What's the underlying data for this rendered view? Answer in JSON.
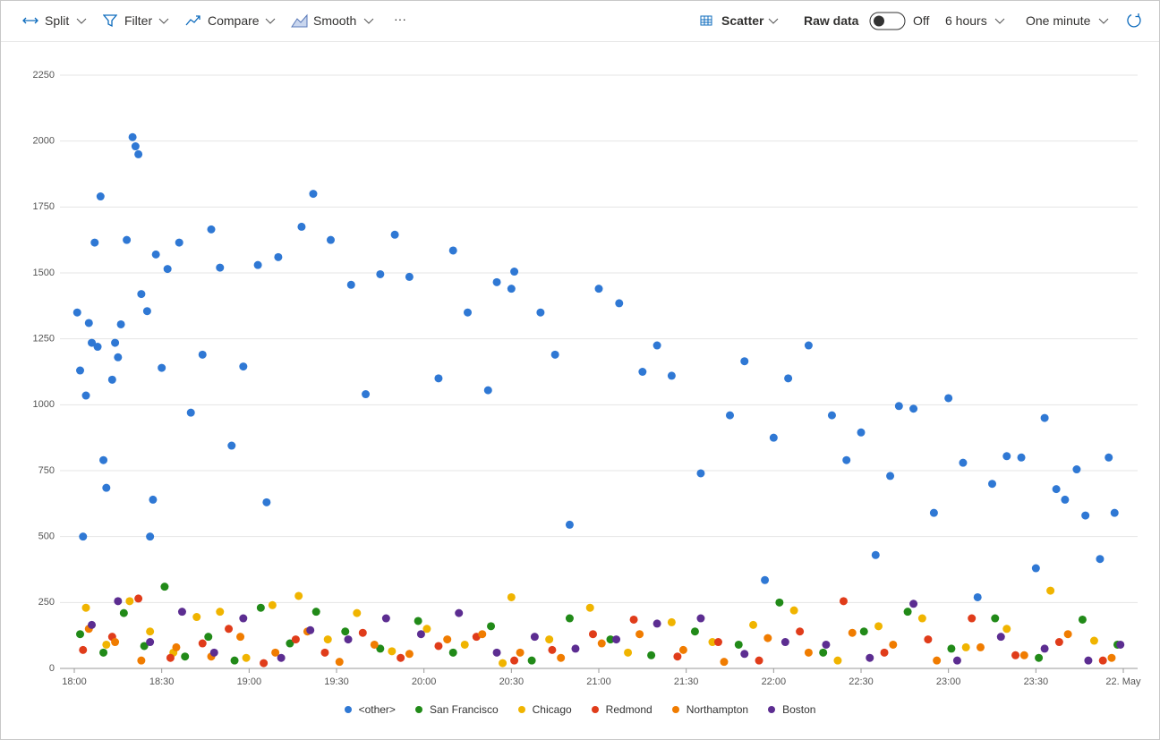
{
  "toolbar": {
    "split": "Split",
    "filter": "Filter",
    "compare": "Compare",
    "smooth": "Smooth",
    "more": "···",
    "chart_type": "Scatter",
    "raw_data": "Raw data",
    "toggle": "Off",
    "range": "6 hours",
    "interval": "One minute"
  },
  "chart_data": {
    "type": "scatter",
    "grid": true,
    "xlim": [
      "18:00",
      "24:00"
    ],
    "xticks": [
      "18:00",
      "18:30",
      "19:00",
      "19:30",
      "20:00",
      "20:30",
      "21:00",
      "21:30",
      "22:00",
      "22:30",
      "23:00",
      "23:30",
      {
        "value": "24:00",
        "label": "22. May"
      }
    ],
    "ylim": [
      0,
      2250
    ],
    "yticks": [
      0,
      250,
      500,
      750,
      1000,
      1250,
      1500,
      1750,
      2000,
      2250
    ],
    "series": [
      {
        "name": "<other>",
        "color": "#2f78d4",
        "x": [
          "18:01",
          "18:02",
          "18:03",
          "18:04",
          "18:05",
          "18:06",
          "18:07",
          "18:08",
          "18:09",
          "18:10",
          "18:11",
          "18:13",
          "18:14",
          "18:15",
          "18:16",
          "18:18",
          "18:20",
          "18:21",
          "18:22",
          "18:23",
          "18:25",
          "18:26",
          "18:27",
          "18:28",
          "18:30",
          "18:32",
          "18:36",
          "18:40",
          "18:44",
          "18:47",
          "18:50",
          "18:54",
          "18:58",
          "19:03",
          "19:06",
          "19:10",
          "19:18",
          "19:22",
          "19:28",
          "19:35",
          "19:40",
          "19:45",
          "19:50",
          "19:55",
          "20:05",
          "20:10",
          "20:15",
          "20:22",
          "20:25",
          "20:30",
          "20:31",
          "20:40",
          "20:45",
          "20:50",
          "21:00",
          "21:07",
          "21:15",
          "21:20",
          "21:25",
          "21:35",
          "21:45",
          "21:50",
          "21:57",
          "22:00",
          "22:05",
          "22:12",
          "22:20",
          "22:25",
          "22:30",
          "22:35",
          "22:40",
          "22:43",
          "22:48",
          "22:55",
          "23:00",
          "23:05",
          "23:10",
          "23:15",
          "23:20",
          "23:25",
          "23:30",
          "23:33",
          "23:37",
          "23:40",
          "23:44",
          "23:47",
          "23:52",
          "23:55",
          "23:57"
        ],
        "values": [
          1350,
          1130,
          500,
          1035,
          1310,
          1235,
          1615,
          1220,
          1790,
          790,
          685,
          1095,
          1235,
          1180,
          1305,
          1625,
          2015,
          1980,
          1950,
          1420,
          1355,
          500,
          640,
          1570,
          1140,
          1515,
          1615,
          970,
          1190,
          1665,
          1520,
          845,
          1145,
          1530,
          630,
          1560,
          1675,
          1800,
          1625,
          1455,
          1040,
          1495,
          1645,
          1485,
          1100,
          1585,
          1350,
          1055,
          1465,
          1440,
          1505,
          1350,
          1190,
          545,
          1440,
          1385,
          1125,
          1225,
          1110,
          740,
          960,
          1165,
          335,
          875,
          1100,
          1225,
          960,
          790,
          895,
          430,
          730,
          995,
          985,
          590,
          1025,
          780,
          270,
          700,
          805,
          800,
          380,
          950,
          680,
          640,
          755,
          580,
          415,
          800,
          590
        ]
      },
      {
        "name": "San Francisco",
        "color": "#218a18",
        "x": [
          "18:02",
          "18:10",
          "18:17",
          "18:24",
          "18:31",
          "18:38",
          "18:46",
          "18:55",
          "19:04",
          "19:14",
          "19:23",
          "19:33",
          "19:45",
          "19:58",
          "20:10",
          "20:23",
          "20:37",
          "20:50",
          "21:04",
          "21:18",
          "21:33",
          "21:48",
          "22:02",
          "22:17",
          "22:31",
          "22:46",
          "23:01",
          "23:16",
          "23:31",
          "23:46",
          "23:58"
        ],
        "values": [
          130,
          60,
          210,
          85,
          310,
          45,
          120,
          30,
          230,
          95,
          215,
          140,
          75,
          180,
          60,
          160,
          30,
          190,
          110,
          50,
          140,
          90,
          250,
          60,
          140,
          215,
          75,
          190,
          40,
          185,
          90
        ]
      },
      {
        "name": "Chicago",
        "color": "#f0b400",
        "x": [
          "18:04",
          "18:11",
          "18:19",
          "18:26",
          "18:34",
          "18:42",
          "18:50",
          "18:59",
          "19:08",
          "19:17",
          "19:27",
          "19:37",
          "19:49",
          "20:01",
          "20:14",
          "20:27",
          "20:30",
          "20:43",
          "20:57",
          "21:10",
          "21:25",
          "21:39",
          "21:53",
          "22:07",
          "22:22",
          "22:36",
          "22:51",
          "23:06",
          "23:20",
          "23:35",
          "23:50"
        ],
        "values": [
          230,
          90,
          255,
          140,
          60,
          195,
          215,
          40,
          240,
          275,
          110,
          210,
          65,
          150,
          90,
          20,
          270,
          110,
          230,
          60,
          175,
          100,
          165,
          220,
          30,
          160,
          190,
          80,
          150,
          295,
          105
        ]
      },
      {
        "name": "Redmond",
        "color": "#e03c1a",
        "x": [
          "18:03",
          "18:13",
          "18:22",
          "18:33",
          "18:44",
          "18:53",
          "19:05",
          "19:16",
          "19:26",
          "19:39",
          "19:52",
          "20:05",
          "20:18",
          "20:31",
          "20:44",
          "20:58",
          "21:12",
          "21:27",
          "21:41",
          "21:55",
          "22:09",
          "22:24",
          "22:38",
          "22:53",
          "23:08",
          "23:23",
          "23:38",
          "23:53"
        ],
        "values": [
          70,
          120,
          265,
          40,
          95,
          150,
          20,
          110,
          60,
          135,
          40,
          85,
          120,
          30,
          70,
          130,
          185,
          45,
          100,
          30,
          140,
          255,
          60,
          110,
          190,
          50,
          100,
          30
        ]
      },
      {
        "name": "Northampton",
        "color": "#f07c00",
        "x": [
          "18:05",
          "18:14",
          "18:23",
          "18:35",
          "18:47",
          "18:57",
          "19:09",
          "19:20",
          "19:31",
          "19:43",
          "19:55",
          "20:08",
          "20:20",
          "20:33",
          "20:47",
          "21:01",
          "21:14",
          "21:29",
          "21:43",
          "21:58",
          "22:12",
          "22:27",
          "22:41",
          "22:56",
          "23:11",
          "23:26",
          "23:41",
          "23:56"
        ],
        "values": [
          150,
          100,
          30,
          80,
          45,
          120,
          60,
          140,
          25,
          90,
          55,
          110,
          130,
          60,
          40,
          95,
          130,
          70,
          25,
          115,
          60,
          135,
          90,
          30,
          80,
          50,
          130,
          40
        ]
      },
      {
        "name": "Boston",
        "color": "#5c2d91",
        "x": [
          "18:06",
          "18:15",
          "18:26",
          "18:37",
          "18:48",
          "18:58",
          "19:11",
          "19:21",
          "19:34",
          "19:47",
          "19:59",
          "20:12",
          "20:25",
          "20:38",
          "20:52",
          "21:06",
          "21:20",
          "21:35",
          "21:50",
          "22:04",
          "22:18",
          "22:33",
          "22:48",
          "23:03",
          "23:18",
          "23:33",
          "23:48",
          "23:59"
        ],
        "values": [
          165,
          255,
          100,
          215,
          60,
          190,
          40,
          145,
          110,
          190,
          130,
          210,
          60,
          120,
          75,
          110,
          170,
          190,
          55,
          100,
          90,
          40,
          245,
          30,
          120,
          75,
          30,
          90
        ]
      }
    ]
  }
}
